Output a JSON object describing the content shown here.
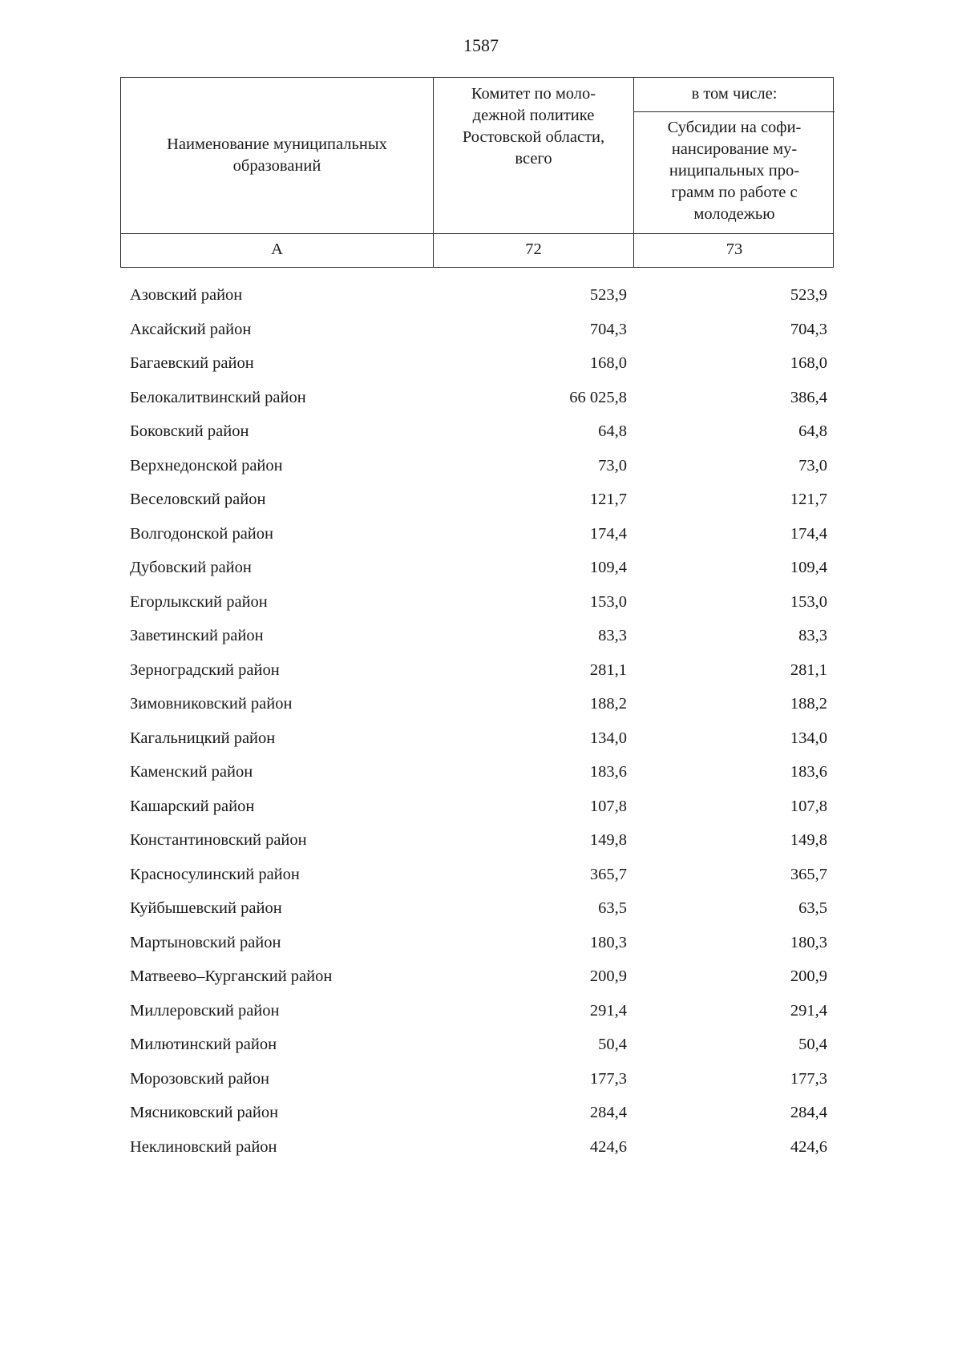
{
  "page_number": "1587",
  "table": {
    "header": {
      "col_name": "Наименование муниципальных\nобразований",
      "col_total": "Комитет по моло-\nдежной политике\nРостовской области,\nвсего",
      "including_label": "в том числе:",
      "col_subsidy": "Субсидии на софи-\nнансирование му-\nниципальных про-\nграмм по работе с\nмолодежью"
    },
    "subheader": {
      "a": "А",
      "total": "72",
      "subsidy": "73"
    },
    "rows": [
      {
        "name": "Азовский район",
        "total": "523,9",
        "subsidy": "523,9"
      },
      {
        "name": "Аксайский район",
        "total": "704,3",
        "subsidy": "704,3"
      },
      {
        "name": "Багаевский район",
        "total": "168,0",
        "subsidy": "168,0"
      },
      {
        "name": "Белокалитвинский район",
        "total": "66 025,8",
        "subsidy": "386,4"
      },
      {
        "name": "Боковский район",
        "total": "64,8",
        "subsidy": "64,8"
      },
      {
        "name": "Верхнедонской район",
        "total": "73,0",
        "subsidy": "73,0"
      },
      {
        "name": "Веселовский район",
        "total": "121,7",
        "subsidy": "121,7"
      },
      {
        "name": "Волгодонской район",
        "total": "174,4",
        "subsidy": "174,4"
      },
      {
        "name": "Дубовский район",
        "total": "109,4",
        "subsidy": "109,4"
      },
      {
        "name": "Егорлыкский район",
        "total": "153,0",
        "subsidy": "153,0"
      },
      {
        "name": "Заветинский район",
        "total": "83,3",
        "subsidy": "83,3"
      },
      {
        "name": "Зерноградский район",
        "total": "281,1",
        "subsidy": "281,1"
      },
      {
        "name": "Зимовниковский район",
        "total": "188,2",
        "subsidy": "188,2"
      },
      {
        "name": "Кагальницкий район",
        "total": "134,0",
        "subsidy": "134,0"
      },
      {
        "name": "Каменский район",
        "total": "183,6",
        "subsidy": "183,6"
      },
      {
        "name": "Кашарский район",
        "total": "107,8",
        "subsidy": "107,8"
      },
      {
        "name": "Константиновский район",
        "total": "149,8",
        "subsidy": "149,8"
      },
      {
        "name": "Красносулинский район",
        "total": "365,7",
        "subsidy": "365,7"
      },
      {
        "name": "Куйбышевский район",
        "total": "63,5",
        "subsidy": "63,5"
      },
      {
        "name": "Мартыновский район",
        "total": "180,3",
        "subsidy": "180,3"
      },
      {
        "name": "Матвеево–Курганский район",
        "total": "200,9",
        "subsidy": "200,9"
      },
      {
        "name": "Миллеровский район",
        "total": "291,4",
        "subsidy": "291,4"
      },
      {
        "name": "Милютинский район",
        "total": "50,4",
        "subsidy": "50,4"
      },
      {
        "name": "Морозовский район",
        "total": "177,3",
        "subsidy": "177,3"
      },
      {
        "name": "Мясниковский район",
        "total": "284,4",
        "subsidy": "284,4"
      },
      {
        "name": "Неклиновский район",
        "total": "424,6",
        "subsidy": "424,6"
      }
    ]
  }
}
